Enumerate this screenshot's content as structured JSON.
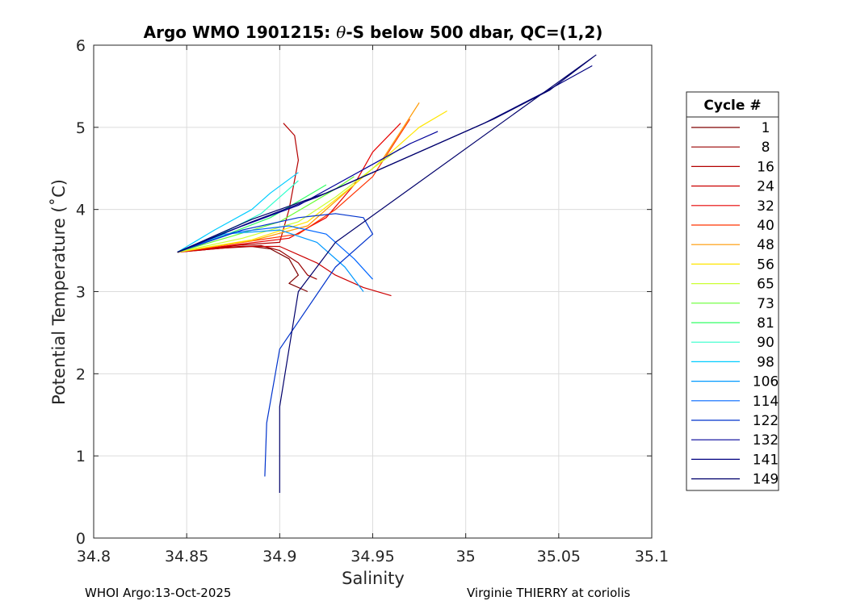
{
  "chart_data": {
    "type": "line",
    "title": "Argo WMO 1901215: θ-S below 500 dbar,  QC=(1,2)",
    "title_prefix": "Argo WMO 1901215: ",
    "title_theta": "θ",
    "title_suffix": "-S below 500 dbar,  QC=(1,2)",
    "xlabel": "Salinity",
    "ylabel": "Potential Temperature (˚C)",
    "xlim": [
      34.8,
      35.1
    ],
    "ylim": [
      0,
      6
    ],
    "xticks": [
      34.8,
      34.85,
      34.9,
      34.95,
      35.0,
      35.05,
      35.1
    ],
    "xtick_labels": [
      "34.8",
      "34.85",
      "34.9",
      "34.95",
      "35",
      "35.05",
      "35.1"
    ],
    "yticks": [
      0,
      1,
      2,
      3,
      4,
      5,
      6
    ],
    "ytick_labels": [
      "0",
      "1",
      "2",
      "3",
      "4",
      "5",
      "6"
    ],
    "grid": true,
    "legend_title": "Cycle #",
    "legend_placement": "outside-right",
    "series": [
      {
        "name": "1",
        "color": "#7f0000",
        "S": [
          34.845,
          34.87,
          34.885,
          34.895,
          34.905,
          34.91,
          34.905,
          34.915
        ],
        "T": [
          3.48,
          3.53,
          3.55,
          3.52,
          3.4,
          3.2,
          3.1,
          3.0
        ]
      },
      {
        "name": "8",
        "color": "#990000",
        "S": [
          34.845,
          34.87,
          34.89,
          34.9,
          34.91,
          34.915,
          34.92
        ],
        "T": [
          3.48,
          3.54,
          3.56,
          3.5,
          3.35,
          3.2,
          3.15
        ]
      },
      {
        "name": "16",
        "color": "#b30000",
        "S": [
          34.845,
          34.875,
          34.9,
          34.905,
          34.91,
          34.908,
          34.902
        ],
        "T": [
          3.48,
          3.56,
          3.6,
          4.0,
          4.6,
          4.9,
          5.05
        ]
      },
      {
        "name": "24",
        "color": "#cc0000",
        "S": [
          34.845,
          34.88,
          34.9,
          34.92,
          34.93,
          34.945,
          34.96
        ],
        "T": [
          3.48,
          3.55,
          3.55,
          3.35,
          3.2,
          3.05,
          2.95
        ]
      },
      {
        "name": "32",
        "color": "#e60000",
        "S": [
          34.845,
          34.88,
          34.905,
          34.925,
          34.94,
          34.95,
          34.965
        ],
        "T": [
          3.48,
          3.58,
          3.65,
          3.9,
          4.3,
          4.7,
          5.05
        ]
      },
      {
        "name": "40",
        "color": "#ff3300",
        "S": [
          34.845,
          34.88,
          34.91,
          34.93,
          34.95,
          34.96,
          34.97
        ],
        "T": [
          3.48,
          3.6,
          3.7,
          4.0,
          4.4,
          4.75,
          5.1
        ]
      },
      {
        "name": "48",
        "color": "#ff9900",
        "S": [
          34.845,
          34.885,
          34.915,
          34.935,
          34.955,
          34.965,
          34.975
        ],
        "T": [
          3.48,
          3.62,
          3.8,
          4.2,
          4.6,
          4.95,
          5.3
        ]
      },
      {
        "name": "56",
        "color": "#ffe600",
        "S": [
          34.845,
          34.885,
          34.915,
          34.94,
          34.96,
          34.975,
          34.99
        ],
        "T": [
          3.48,
          3.63,
          3.85,
          4.3,
          4.7,
          5.0,
          5.2
        ]
      },
      {
        "name": "65",
        "color": "#ccff33",
        "S": [
          34.845,
          34.88,
          34.91,
          34.93,
          34.95,
          34.965
        ],
        "T": [
          3.48,
          3.65,
          3.85,
          4.15,
          4.5,
          4.75
        ]
      },
      {
        "name": "73",
        "color": "#66ff33",
        "S": [
          34.845,
          34.875,
          34.9,
          34.915,
          34.93,
          34.94
        ],
        "T": [
          3.48,
          3.68,
          3.85,
          4.05,
          4.25,
          4.4
        ]
      },
      {
        "name": "81",
        "color": "#33ff66",
        "S": [
          34.845,
          34.872,
          34.895,
          34.91,
          34.925
        ],
        "T": [
          3.48,
          3.7,
          3.9,
          4.1,
          4.3
        ]
      },
      {
        "name": "90",
        "color": "#33ffcc",
        "S": [
          34.845,
          34.87,
          34.89,
          34.9,
          34.91
        ],
        "T": [
          3.48,
          3.72,
          3.95,
          4.15,
          4.35
        ]
      },
      {
        "name": "98",
        "color": "#00ccff",
        "S": [
          34.845,
          34.865,
          34.885,
          34.895,
          34.91
        ],
        "T": [
          3.48,
          3.75,
          4.0,
          4.2,
          4.45
        ]
      },
      {
        "name": "106",
        "color": "#0099ff",
        "S": [
          34.845,
          34.87,
          34.9,
          34.92,
          34.935,
          34.945
        ],
        "T": [
          3.48,
          3.7,
          3.75,
          3.6,
          3.3,
          3.0
        ]
      },
      {
        "name": "114",
        "color": "#0066ff",
        "S": [
          34.845,
          34.875,
          34.905,
          34.925,
          34.94,
          34.95
        ],
        "T": [
          3.48,
          3.72,
          3.8,
          3.7,
          3.4,
          3.15
        ]
      },
      {
        "name": "122",
        "color": "#0033cc",
        "S": [
          34.845,
          34.88,
          34.91,
          34.93,
          34.945,
          34.95,
          34.93,
          34.9,
          34.893,
          34.892
        ],
        "T": [
          3.48,
          3.75,
          3.9,
          3.95,
          3.9,
          3.7,
          3.3,
          2.3,
          1.4,
          0.75
        ]
      },
      {
        "name": "132",
        "color": "#000099",
        "S": [
          34.845,
          34.88,
          34.91,
          34.93,
          34.95,
          34.97,
          34.985
        ],
        "T": [
          3.48,
          3.8,
          4.05,
          4.3,
          4.55,
          4.8,
          4.95
        ]
      },
      {
        "name": "141",
        "color": "#000080",
        "S": [
          34.845,
          34.885,
          34.92,
          34.95,
          34.98,
          35.01,
          35.04,
          35.068
        ],
        "T": [
          3.48,
          3.85,
          4.15,
          4.45,
          4.75,
          5.05,
          5.4,
          5.75
        ]
      },
      {
        "name": "149",
        "color": "#00006b",
        "S": [
          34.845,
          34.885,
          34.925,
          34.955,
          34.985,
          35.015,
          35.045,
          35.07,
          34.93,
          34.91,
          34.9,
          34.9
        ],
        "T": [
          3.48,
          3.88,
          4.2,
          4.5,
          4.8,
          5.1,
          5.45,
          5.88,
          3.6,
          3.0,
          1.6,
          0.55
        ]
      }
    ]
  },
  "footer": {
    "left": "WHOI Argo:13-Oct-2025",
    "right": "Virginie THIERRY at coriolis"
  }
}
